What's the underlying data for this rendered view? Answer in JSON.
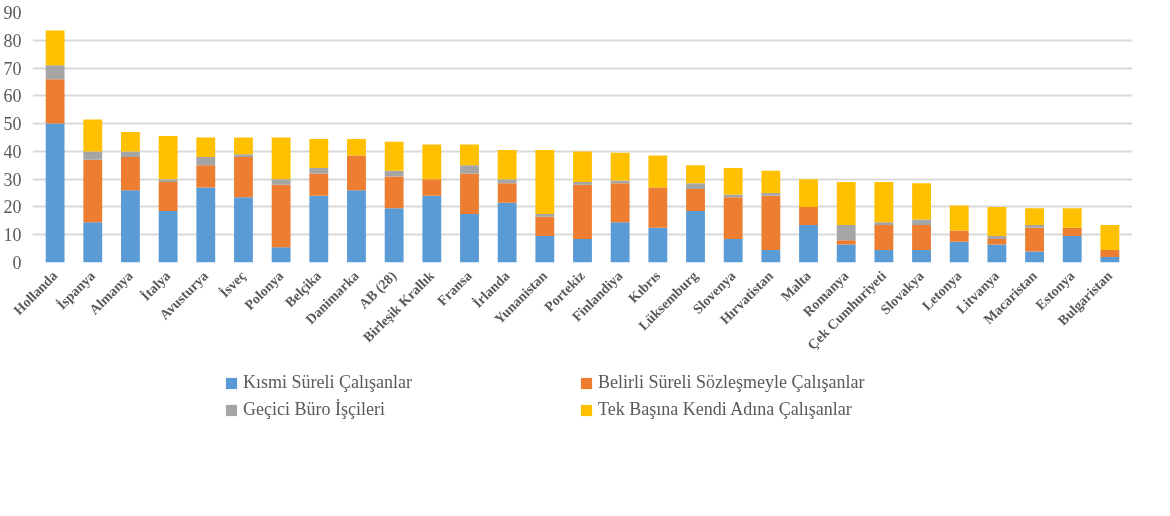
{
  "chart_data": {
    "type": "bar",
    "stacked": true,
    "categories": [
      "Hollanda",
      "İspanya",
      "Almanya",
      "İtalya",
      "Avusturya",
      "İsveç",
      "Polonya",
      "Belçika",
      "Danimarka",
      "AB (28)",
      "Birleşik Krallık",
      "Fransa",
      "İrlanda",
      "Yunanistan",
      "Portekiz",
      "Finlandiya",
      "Kıbrıs",
      "Lüksemburg",
      "Slovenya",
      "Hırvatistan",
      "Malta",
      "Romanya",
      "Çek Cumhuriyeti",
      "Slovakya",
      "Letonya",
      "Litvanya",
      "Macaristan",
      "Estonya",
      "Bulgaristan"
    ],
    "series": [
      {
        "name": "Kısmi Süreli Çalışanlar",
        "color": "#5b9bd5",
        "values": [
          50,
          14.5,
          26,
          18.5,
          27,
          23.5,
          5.5,
          24,
          26,
          19.5,
          24,
          17.5,
          21.5,
          9.5,
          8.5,
          14.5,
          12.5,
          18.5,
          8.5,
          4.5,
          13.5,
          6.5,
          4.5,
          4.5,
          7.5,
          6.5,
          4,
          9.5,
          2
        ]
      },
      {
        "name": "Belirli Süreli Sözleşmeyle Çalışanlar",
        "color": "#ed7d31",
        "values": [
          16,
          22.5,
          12,
          10.5,
          8,
          14.5,
          22.5,
          8,
          12.5,
          11.5,
          6,
          14.5,
          7,
          7,
          19.5,
          14,
          14.5,
          8,
          15,
          19.5,
          6.5,
          1.5,
          9,
          9,
          4,
          2,
          8.5,
          3,
          2.5
        ]
      },
      {
        "name": "Geçici Büro İşçileri",
        "color": "#a5a5a5",
        "values": [
          5,
          3,
          2,
          1,
          3,
          1,
          2,
          2,
          null,
          2,
          null,
          3,
          1.5,
          1,
          1,
          1,
          null,
          2,
          1,
          1,
          null,
          5.5,
          1,
          2,
          null,
          1,
          1,
          null,
          null
        ]
      },
      {
        "name": "Tek Başına Kendi Adına Çalışanlar",
        "color": "#ffc000",
        "values": [
          12.5,
          11.5,
          7,
          15.5,
          7,
          6,
          15,
          10.5,
          6,
          10.5,
          12.5,
          7.5,
          10.5,
          23,
          11,
          10,
          11.5,
          6.5,
          9.5,
          8,
          10,
          15.5,
          14.5,
          13,
          9,
          10.5,
          6,
          7,
          9
        ]
      }
    ],
    "ylim": [
      0,
      90
    ],
    "yticks": [
      0,
      10,
      20,
      30,
      40,
      50,
      60,
      70,
      80,
      90
    ],
    "grid": "y",
    "legend": "bottom"
  }
}
